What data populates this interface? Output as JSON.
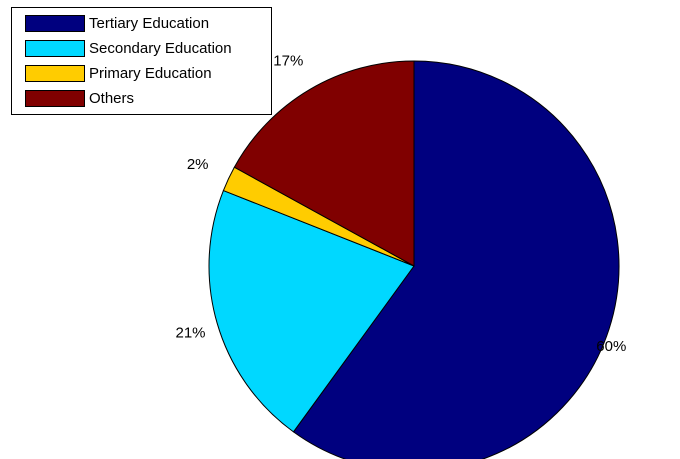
{
  "chart_data": {
    "type": "pie",
    "categories": [
      "Tertiary Education",
      "Secondary Education",
      "Primary Education",
      "Others"
    ],
    "values": [
      60,
      21,
      2,
      17
    ],
    "labels": [
      "60%",
      "21%",
      "2%",
      "17%"
    ],
    "colors": [
      "#00007f",
      "#00d8ff",
      "#ffcc00",
      "#800000"
    ],
    "start_angle_deg": 0,
    "direction": "clockwise-from-top",
    "legend": "top-left"
  }
}
